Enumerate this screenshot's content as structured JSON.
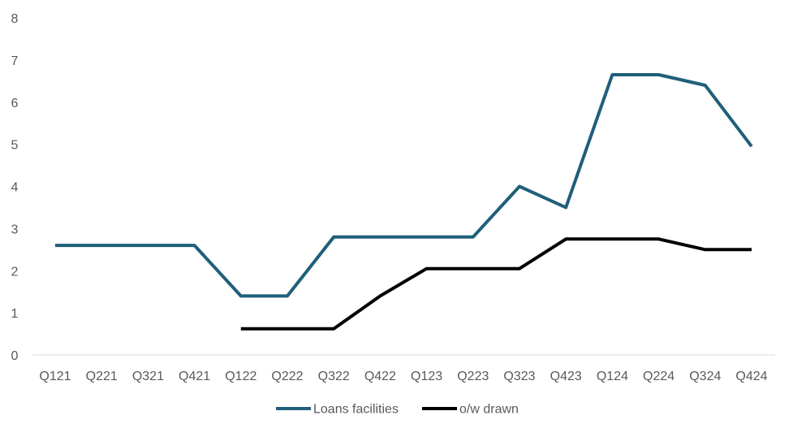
{
  "chart_data": {
    "type": "line",
    "title": "",
    "xlabel": "",
    "ylabel": "",
    "categories": [
      "Q121",
      "Q221",
      "Q321",
      "Q421",
      "Q122",
      "Q222",
      "Q322",
      "Q422",
      "Q123",
      "Q223",
      "Q323",
      "Q423",
      "Q124",
      "Q224",
      "Q324",
      "Q424"
    ],
    "ylim": [
      0,
      8
    ],
    "yticks": [
      "0",
      "1",
      "2",
      "3",
      "4",
      "5",
      "6",
      "7",
      "8"
    ],
    "grid": false,
    "legend_position": "bottom",
    "series": [
      {
        "name": "Loans facilities",
        "color": "#1F5F7A",
        "values": [
          2.6,
          2.6,
          2.6,
          2.6,
          1.4,
          1.4,
          2.8,
          2.8,
          2.8,
          2.8,
          4.0,
          3.5,
          6.65,
          6.65,
          6.4,
          4.95
        ]
      },
      {
        "name": "o/w drawn",
        "color": "#000000",
        "values": [
          null,
          null,
          null,
          null,
          0.62,
          0.62,
          0.62,
          1.4,
          2.05,
          2.05,
          2.05,
          2.75,
          2.75,
          2.75,
          2.5,
          2.5
        ]
      }
    ]
  }
}
